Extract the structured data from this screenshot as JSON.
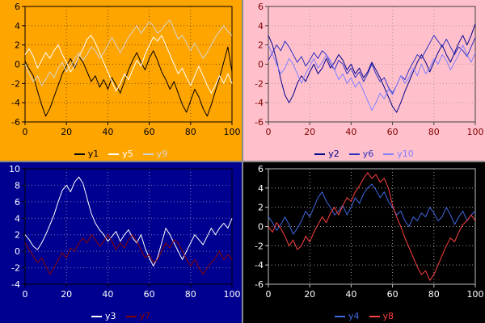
{
  "page": {
    "background": "#8a8a8a"
  },
  "chart_data": [
    {
      "id": "top-left",
      "type": "line",
      "title": "",
      "xlabel": "",
      "ylabel": "",
      "background": "#ffa500",
      "frame_color": "#000000",
      "grid_color": "#00000088",
      "label_color": "#000000",
      "grid": true,
      "legend_position": "bottom",
      "xlim": [
        0,
        100
      ],
      "ylim": [
        -6,
        6
      ],
      "xticks": [
        0,
        20,
        40,
        60,
        80,
        100
      ],
      "yticks": [
        6,
        4,
        2,
        0,
        -2,
        -4,
        -6
      ],
      "x_start": 0,
      "x_step": 2,
      "series": [
        {
          "name": "y1",
          "color": "#000000",
          "values": [
            0.3,
            -0.5,
            -1.2,
            -2.8,
            -4.2,
            -5.4,
            -4.6,
            -3.4,
            -2.2,
            -1.0,
            -0.2,
            0.6,
            -0.4,
            0.8,
            0.2,
            -0.8,
            -1.8,
            -1.2,
            -2.4,
            -1.6,
            -2.6,
            -1.4,
            -2.2,
            -3.0,
            -1.8,
            -0.6,
            0.4,
            1.2,
            0.2,
            -0.6,
            0.6,
            1.4,
            0.4,
            -0.8,
            -1.6,
            -2.6,
            -1.8,
            -3.0,
            -4.2,
            -5.0,
            -3.8,
            -2.6,
            -3.4,
            -4.6,
            -5.4,
            -4.2,
            -2.8,
            -1.4,
            0.2,
            1.8,
            -0.8
          ]
        },
        {
          "name": "y5",
          "color": "#ffffff",
          "values": [
            1.0,
            1.6,
            0.8,
            -0.4,
            0.4,
            1.2,
            0.6,
            1.4,
            2.0,
            1.0,
            0.2,
            -0.8,
            -0.2,
            0.8,
            1.6,
            2.6,
            3.0,
            2.2,
            1.2,
            0.2,
            -0.8,
            -1.8,
            -2.8,
            -2.0,
            -1.0,
            -1.6,
            -0.6,
            0.4,
            -0.2,
            1.0,
            2.0,
            2.8,
            2.4,
            3.0,
            2.0,
            1.0,
            0.0,
            -1.0,
            -0.4,
            -1.4,
            -2.2,
            -1.2,
            -0.2,
            -1.2,
            -2.2,
            -3.0,
            -2.2,
            -1.2,
            -2.0,
            -1.0,
            -2.0
          ]
        },
        {
          "name": "y9",
          "color": "#d3d3d3",
          "values": [
            0.0,
            -1.0,
            -1.8,
            -1.2,
            -2.2,
            -1.6,
            -0.8,
            -1.4,
            -0.4,
            0.2,
            -0.8,
            -0.2,
            0.6,
            1.2,
            0.4,
            1.0,
            1.8,
            1.4,
            0.6,
            1.2,
            2.0,
            2.8,
            2.0,
            1.2,
            2.0,
            2.8,
            3.4,
            4.0,
            3.2,
            3.8,
            4.4,
            4.0,
            3.2,
            3.6,
            4.2,
            4.6,
            3.6,
            2.6,
            3.0,
            2.2,
            1.4,
            2.2,
            1.4,
            0.6,
            1.2,
            2.0,
            2.8,
            3.4,
            4.0,
            3.4,
            3.0
          ]
        }
      ]
    },
    {
      "id": "top-right",
      "type": "line",
      "title": "",
      "xlabel": "",
      "ylabel": "",
      "background": "#ffc0cb",
      "frame_color": "#404040",
      "grid_color": "#80808099",
      "label_color": "#800000",
      "grid": true,
      "legend_position": "bottom",
      "xlim": [
        0,
        100
      ],
      "ylim": [
        -6,
        6
      ],
      "xticks": [
        0,
        20,
        40,
        60,
        80,
        100
      ],
      "yticks": [
        6,
        4,
        2,
        0,
        -2,
        -4,
        -6
      ],
      "x_start": 0,
      "x_step": 2,
      "series": [
        {
          "name": "y2",
          "color": "#00008b",
          "values": [
            3.0,
            2.0,
            0.4,
            -1.6,
            -3.2,
            -4.0,
            -3.2,
            -2.0,
            -1.2,
            -1.8,
            -0.8,
            0.0,
            -1.0,
            -0.4,
            0.6,
            -0.4,
            0.2,
            1.0,
            0.4,
            -0.6,
            0.0,
            -1.0,
            -0.4,
            -1.4,
            -0.8,
            0.2,
            -0.6,
            -1.4,
            -2.4,
            -3.4,
            -4.4,
            -5.0,
            -4.0,
            -2.8,
            -1.8,
            -0.8,
            0.2,
            1.0,
            0.2,
            -0.8,
            0.2,
            1.2,
            2.0,
            1.0,
            0.2,
            1.2,
            2.2,
            3.0,
            2.0,
            3.0,
            4.2
          ]
        },
        {
          "name": "y6",
          "color": "#3030c0",
          "values": [
            0.4,
            1.2,
            2.0,
            1.4,
            2.4,
            1.8,
            1.0,
            0.2,
            0.8,
            -0.2,
            0.4,
            1.2,
            0.6,
            1.4,
            1.0,
            0.0,
            -0.6,
            0.4,
            0.0,
            -1.0,
            -0.4,
            -1.4,
            -0.8,
            -1.8,
            -1.0,
            0.0,
            -1.0,
            -1.8,
            -1.4,
            -2.4,
            -3.0,
            -2.2,
            -1.2,
            -1.6,
            -0.6,
            0.2,
            1.0,
            0.6,
            1.4,
            2.2,
            3.0,
            2.4,
            1.8,
            2.6,
            1.8,
            1.0,
            1.8,
            1.4,
            0.8,
            1.8,
            2.8
          ]
        },
        {
          "name": "y10",
          "color": "#8080ff",
          "values": [
            2.0,
            1.0,
            0.0,
            -1.0,
            -0.4,
            0.6,
            0.0,
            -1.0,
            -2.0,
            -1.0,
            -0.2,
            0.6,
            -0.4,
            0.2,
            1.0,
            0.4,
            -0.6,
            -1.6,
            -1.0,
            -2.0,
            -1.4,
            -2.4,
            -1.8,
            -2.8,
            -3.8,
            -4.8,
            -4.0,
            -3.0,
            -3.6,
            -2.6,
            -3.2,
            -2.2,
            -1.2,
            -2.0,
            -1.4,
            -0.4,
            -1.2,
            0.0,
            -1.0,
            -0.4,
            0.6,
            0.0,
            1.0,
            0.4,
            -0.6,
            0.2,
            1.0,
            2.0,
            1.0,
            0.2,
            1.2
          ]
        }
      ]
    },
    {
      "id": "bottom-left",
      "type": "line",
      "title": "",
      "xlabel": "",
      "ylabel": "",
      "background": "#000090",
      "frame_color": "#000000",
      "grid_color": "#cccccc99",
      "label_color": "#ffffff",
      "grid": true,
      "legend_position": "bottom",
      "xlim": [
        0,
        100
      ],
      "ylim": [
        -4,
        10
      ],
      "xticks": [
        0,
        20,
        40,
        60,
        80,
        100
      ],
      "yticks": [
        10,
        8,
        6,
        4,
        2,
        0,
        -2,
        -4
      ],
      "x_start": 0,
      "x_step": 2,
      "series": [
        {
          "name": "y3",
          "color": "#ffffff",
          "values": [
            2.0,
            1.4,
            0.6,
            0.2,
            1.0,
            2.0,
            3.2,
            4.4,
            6.0,
            7.4,
            8.0,
            7.2,
            8.4,
            9.0,
            8.2,
            6.4,
            4.6,
            3.4,
            2.6,
            2.0,
            1.2,
            1.8,
            2.4,
            1.2,
            2.0,
            2.6,
            1.6,
            1.0,
            2.0,
            0.4,
            -0.8,
            -1.8,
            -0.8,
            1.0,
            2.8,
            2.0,
            1.0,
            0.0,
            -1.0,
            0.0,
            1.0,
            2.0,
            1.4,
            0.8,
            1.8,
            2.8,
            2.0,
            2.8,
            3.4,
            2.8,
            4.0
          ]
        },
        {
          "name": "y7",
          "color": "#8b0000",
          "values": [
            1.0,
            0.2,
            -0.6,
            -1.4,
            -0.8,
            -1.8,
            -2.8,
            -2.0,
            -1.0,
            -0.2,
            -0.8,
            0.4,
            0.0,
            1.0,
            1.6,
            1.0,
            2.0,
            1.4,
            0.6,
            1.2,
            2.0,
            1.2,
            0.2,
            1.0,
            0.4,
            1.4,
            2.0,
            1.2,
            0.2,
            -0.8,
            -0.4,
            -1.4,
            -1.0,
            0.0,
            1.0,
            0.4,
            1.4,
            1.0,
            0.0,
            -1.0,
            -1.8,
            -1.0,
            -2.0,
            -2.8,
            -2.0,
            -1.4,
            -0.8,
            0.0,
            -1.0,
            -0.4,
            -1.0
          ]
        }
      ]
    },
    {
      "id": "bottom-right",
      "type": "line",
      "title": "",
      "xlabel": "",
      "ylabel": "",
      "background": "#000000",
      "frame_color": "#c0c0c0",
      "grid_color": "#ffffff99",
      "label_color": "#ffffff",
      "grid": true,
      "legend_position": "bottom",
      "xlim": [
        0,
        100
      ],
      "ylim": [
        -6,
        6
      ],
      "xticks": [
        0,
        20,
        40,
        60,
        80,
        100
      ],
      "yticks": [
        6,
        4,
        2,
        0,
        -2,
        -4,
        -6
      ],
      "x_start": 0,
      "x_step": 2,
      "series": [
        {
          "name": "y4",
          "color": "#4169e1",
          "values": [
            1.0,
            0.4,
            -0.4,
            0.2,
            1.0,
            0.2,
            -0.8,
            -0.2,
            0.6,
            1.6,
            1.0,
            2.0,
            3.0,
            3.6,
            2.6,
            2.0,
            1.2,
            1.6,
            2.2,
            1.2,
            2.0,
            3.0,
            2.4,
            3.4,
            4.0,
            4.4,
            3.8,
            3.0,
            3.6,
            2.6,
            2.0,
            1.2,
            1.6,
            0.6,
            0.0,
            1.0,
            0.6,
            1.4,
            1.0,
            2.0,
            1.4,
            0.6,
            1.0,
            2.0,
            1.2,
            0.2,
            1.0,
            1.6,
            0.6,
            1.2,
            1.6
          ]
        },
        {
          "name": "y8",
          "color": "#ff4040",
          "values": [
            0.0,
            -0.6,
            0.4,
            -0.2,
            -1.0,
            -2.0,
            -1.4,
            -2.4,
            -2.0,
            -1.0,
            -1.6,
            -0.6,
            0.2,
            1.0,
            0.4,
            1.4,
            2.0,
            1.2,
            2.2,
            3.0,
            2.6,
            3.6,
            4.2,
            5.0,
            5.6,
            5.0,
            5.4,
            4.6,
            5.0,
            4.0,
            2.2,
            1.0,
            0.0,
            -1.2,
            -2.2,
            -3.2,
            -4.2,
            -5.0,
            -4.6,
            -5.6,
            -5.0,
            -4.0,
            -3.0,
            -2.0,
            -1.2,
            -1.6,
            -0.6,
            0.2,
            0.6,
            1.2,
            0.6
          ]
        }
      ]
    }
  ]
}
